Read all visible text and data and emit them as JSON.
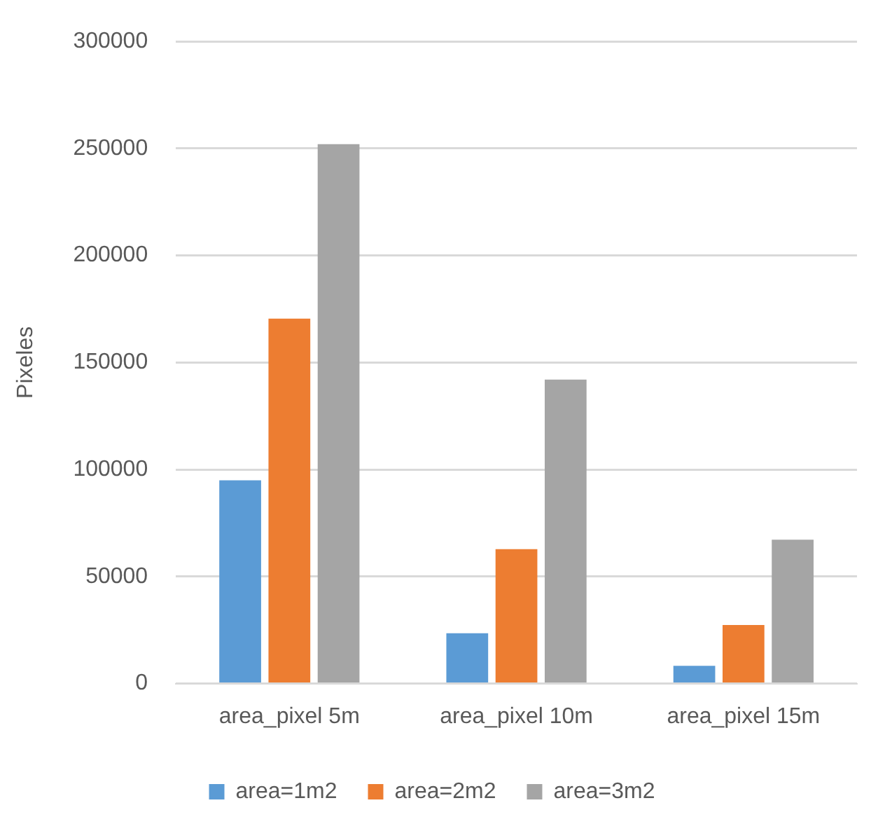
{
  "chart_data": {
    "type": "bar",
    "ylabel": "Pixeles",
    "categories": [
      "area_pixel 5m",
      "area_pixel 10m",
      "area_pixel 15m"
    ],
    "series": [
      {
        "name": "area=1m2",
        "color": "#5b9bd5",
        "values": [
          95000,
          23500,
          8300
        ]
      },
      {
        "name": "area=2m2",
        "color": "#ed7d31",
        "values": [
          170500,
          62800,
          27400
        ]
      },
      {
        "name": "area=3m2",
        "color": "#a5a5a5",
        "values": [
          252000,
          142000,
          67200
        ]
      }
    ],
    "ylim": [
      0,
      300000
    ],
    "yticks": [
      0,
      50000,
      100000,
      150000,
      200000,
      250000,
      300000
    ],
    "grid": "y",
    "legend": "bottom"
  }
}
